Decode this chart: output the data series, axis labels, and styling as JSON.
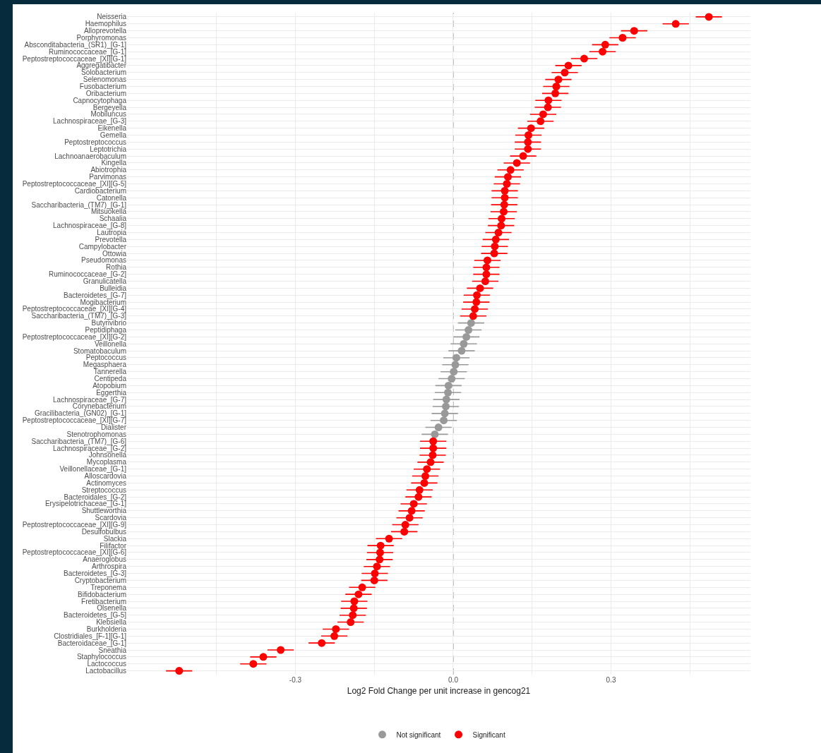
{
  "chart_data": {
    "type": "scatter",
    "orientation": "horizontal",
    "xlabel": "Log2 Fold Change per unit increase in gencog21",
    "categories": [
      "Neisseria",
      "Haemophilus",
      "Alloprevotella",
      "Porphyromonas",
      "Absconditabacteria_(SR1)_[G-1]",
      "Ruminococcaceae_[G-1]",
      "Peptostreptococcaceae_[XI][G-1]",
      "Aggregatibacter",
      "Solobacterium",
      "Selenomonas",
      "Fusobacterium",
      "Oribacterium",
      "Capnocytophaga",
      "Bergeyella",
      "Mobiluncus",
      "Lachnospiraceae_[G-3]",
      "Eikenella",
      "Gemella",
      "Peptostreptococcus",
      "Leptotrichia",
      "Lachnoanaerobaculum",
      "Kingella",
      "Abiotrophia",
      "Parvimonas",
      "Peptostreptococcaceae_[XI][G-5]",
      "Cardiobacterium",
      "Catonella",
      "Saccharibacteria_(TM7)_[G-1]",
      "Mitsuokella",
      "Schaalia",
      "Lachnospiraceae_[G-8]",
      "Lautropia",
      "Prevotella",
      "Campylobacter",
      "Ottowia",
      "Pseudomonas",
      "Rothia",
      "Ruminococcaceae_[G-2]",
      "Granulicatella",
      "Bulleidia",
      "Bacteroidetes_[G-7]",
      "Mogibacterium",
      "Peptostreptococcaceae_[XI][G-4]",
      "Saccharibacteria_(TM7)_[G-3]",
      "Butyrivibrio",
      "Peptidiphaga",
      "Peptostreptococcaceae_[XI][G-2]",
      "Veillonella",
      "Stomatobaculum",
      "Peptococcus",
      "Megasphaera",
      "Tannerella",
      "Centipeda",
      "Atopobium",
      "Eggerthia",
      "Lachnospiraceae_[G-7]",
      "Corynebacterium",
      "Gracilibacteria_(GN02)_[G-1]",
      "Peptostreptococcaceae_[XI][G-7]",
      "Dialister",
      "Stenotrophomonas",
      "Saccharibacteria_(TM7)_[G-6]",
      "Lachnospiraceae_[G-2]",
      "Johnsonella",
      "Mycoplasma",
      "Veillonellaceae_[G-1]",
      "Alloscardovia",
      "Actinomyces",
      "Streptococcus",
      "Bacteroidales_[G-2]",
      "Erysipelotrichaceae_[G-1]",
      "Shuttleworthia",
      "Scardovia",
      "Peptostreptococcaceae_[XI][G-9]",
      "Desulfobulbus",
      "Slackia",
      "Filifactor",
      "Peptostreptococcaceae_[XI][G-6]",
      "Anaeroglobus",
      "Arthrospira",
      "Bacteroidetes_[G-3]",
      "Cryptobacterium",
      "Treponema",
      "Bifidobacterium",
      "Fretibacterium",
      "Olsenella",
      "Bacteroidetes_[G-5]",
      "Klebsiella",
      "Burkholderia",
      "Clostridiales_[F-1][G-1]",
      "Bacteroidaceae_[G-1]",
      "Sneathia",
      "Staphylococcus",
      "Lactococcus",
      "Lactobacillus"
    ],
    "series": [
      {
        "name": "Not significant",
        "color": "#999999",
        "values": [
          null,
          null,
          null,
          null,
          null,
          null,
          null,
          null,
          null,
          null,
          null,
          null,
          null,
          null,
          null,
          null,
          null,
          null,
          null,
          null,
          null,
          null,
          null,
          null,
          null,
          null,
          null,
          null,
          null,
          null,
          null,
          null,
          null,
          null,
          null,
          null,
          null,
          null,
          null,
          null,
          null,
          null,
          null,
          null,
          0.034,
          0.029,
          0.025,
          0.02,
          0.016,
          0.006,
          0.004,
          0.001,
          -0.003,
          -0.009,
          -0.01,
          -0.013,
          -0.014,
          -0.016,
          -0.018,
          -0.028,
          -0.035,
          null,
          null,
          null,
          null,
          null,
          null,
          null,
          null,
          null,
          null,
          null,
          null,
          null,
          null,
          null,
          null,
          null,
          null,
          null,
          null,
          null,
          null,
          null,
          null,
          null,
          null,
          null,
          null,
          null,
          null,
          null,
          null,
          null,
          null
        ],
        "errors": [
          null,
          null,
          null,
          null,
          null,
          null,
          null,
          null,
          null,
          null,
          null,
          null,
          null,
          null,
          null,
          null,
          null,
          null,
          null,
          null,
          null,
          null,
          null,
          null,
          null,
          null,
          null,
          null,
          null,
          null,
          null,
          null,
          null,
          null,
          null,
          null,
          null,
          null,
          null,
          null,
          null,
          null,
          null,
          null,
          0.025,
          0.025,
          0.025,
          0.025,
          0.025,
          0.025,
          0.025,
          0.025,
          0.025,
          0.025,
          0.025,
          0.025,
          0.025,
          0.025,
          0.025,
          0.025,
          0.025,
          null,
          null,
          null,
          null,
          null,
          null,
          null,
          null,
          null,
          null,
          null,
          null,
          null,
          null,
          null,
          null,
          null,
          null,
          null,
          null,
          null,
          null,
          null,
          null,
          null,
          null,
          null,
          null,
          null,
          null,
          null,
          null,
          null,
          null
        ]
      },
      {
        "name": "Significant",
        "color": "#ff0000",
        "values": [
          0.486,
          0.423,
          0.344,
          0.322,
          0.289,
          0.284,
          0.249,
          0.219,
          0.212,
          0.2,
          0.196,
          0.194,
          0.181,
          0.18,
          0.171,
          0.166,
          0.148,
          0.143,
          0.142,
          0.142,
          0.133,
          0.121,
          0.109,
          0.104,
          0.102,
          0.098,
          0.098,
          0.097,
          0.096,
          0.092,
          0.091,
          0.086,
          0.081,
          0.079,
          0.078,
          0.065,
          0.063,
          0.063,
          0.061,
          0.051,
          0.045,
          0.044,
          0.041,
          0.038,
          null,
          null,
          null,
          null,
          null,
          null,
          null,
          null,
          null,
          null,
          null,
          null,
          null,
          null,
          null,
          null,
          null,
          -0.038,
          -0.038,
          -0.039,
          -0.043,
          -0.05,
          -0.053,
          -0.055,
          -0.064,
          -0.066,
          -0.075,
          -0.079,
          -0.083,
          -0.091,
          -0.093,
          -0.122,
          -0.138,
          -0.139,
          -0.14,
          -0.145,
          -0.149,
          -0.15,
          -0.173,
          -0.18,
          -0.188,
          -0.189,
          -0.191,
          -0.195,
          -0.223,
          -0.226,
          -0.25,
          -0.328,
          -0.361,
          -0.38,
          -0.521
        ],
        "errors": [
          0.025,
          0.025,
          0.025,
          0.025,
          0.025,
          0.025,
          0.025,
          0.025,
          0.025,
          0.025,
          0.025,
          0.025,
          0.025,
          0.025,
          0.025,
          0.025,
          0.025,
          0.025,
          0.025,
          0.025,
          0.025,
          0.025,
          0.025,
          0.025,
          0.025,
          0.025,
          0.025,
          0.025,
          0.025,
          0.025,
          0.025,
          0.025,
          0.025,
          0.025,
          0.025,
          0.025,
          0.025,
          0.025,
          0.025,
          0.025,
          0.025,
          0.025,
          0.025,
          0.025,
          null,
          null,
          null,
          null,
          null,
          null,
          null,
          null,
          null,
          null,
          null,
          null,
          null,
          null,
          null,
          null,
          null,
          0.025,
          0.025,
          0.025,
          0.025,
          0.025,
          0.025,
          0.025,
          0.025,
          0.025,
          0.025,
          0.025,
          0.025,
          0.025,
          0.025,
          0.025,
          0.025,
          0.025,
          0.025,
          0.025,
          0.025,
          0.025,
          0.025,
          0.025,
          0.025,
          0.025,
          0.025,
          0.025,
          0.025,
          0.025,
          0.025,
          0.025,
          0.025,
          0.025,
          0.025
        ]
      }
    ],
    "xlim": [
      -0.62,
      0.565
    ],
    "xticks": [
      {
        "value": -0.45,
        "label": null
      },
      {
        "value": -0.3,
        "label": "-0.3"
      },
      {
        "value": -0.15,
        "label": null
      },
      {
        "value": 0,
        "label": "0.0"
      },
      {
        "value": 0.15,
        "label": null
      },
      {
        "value": 0.3,
        "label": "0.3"
      },
      {
        "value": 0.45,
        "label": null
      }
    ],
    "ref_lines": [
      {
        "axis": "x",
        "value": 0,
        "color": "#999999",
        "line_style": "dashed"
      }
    ],
    "grid": true,
    "legend": "bottom",
    "marker": "circle"
  }
}
